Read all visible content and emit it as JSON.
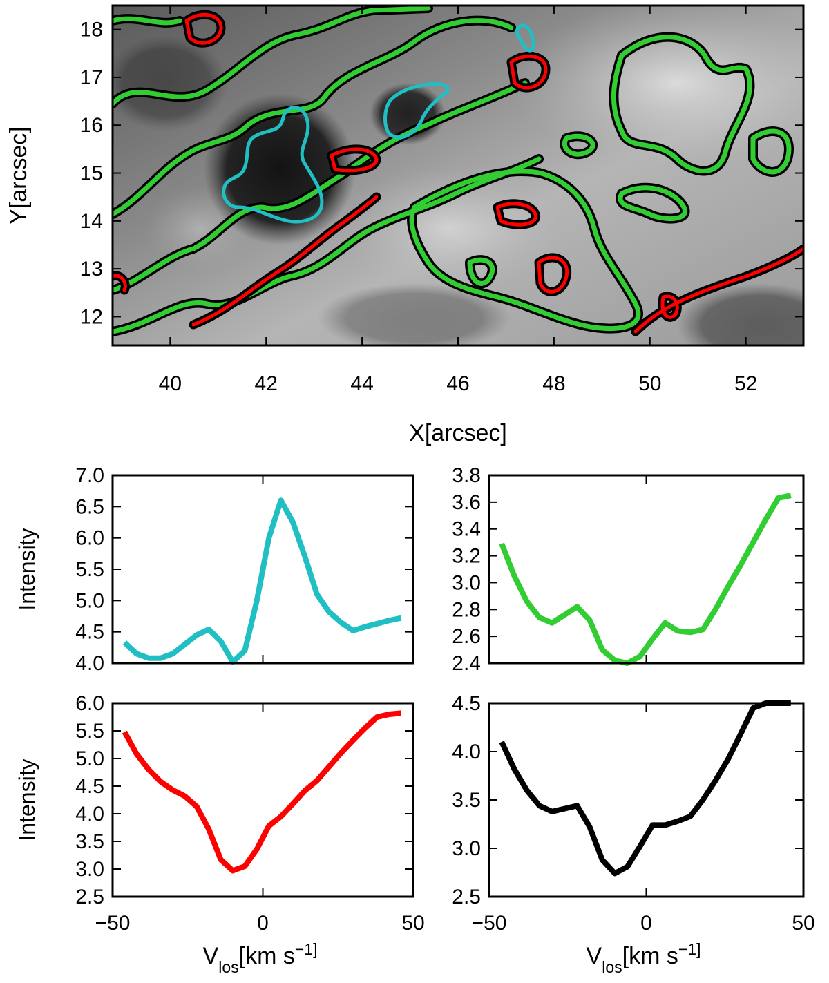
{
  "chart_data": [
    {
      "type": "heatmap",
      "xlabel": "X[arcsec]",
      "ylabel": "Y[arcsec]",
      "xlim": [
        38.8,
        53.2
      ],
      "ylim": [
        11.4,
        18.5
      ],
      "xticks": [
        40,
        42,
        44,
        46,
        48,
        50,
        52
      ],
      "yticks": [
        12,
        13,
        14,
        15,
        16,
        17,
        18
      ],
      "image": "grayscale intensity map with contours",
      "contour_colors": [
        "#1fbfc4",
        "#32cd32",
        "#ff0000",
        "#000000"
      ]
    },
    {
      "type": "line",
      "xlabel": "",
      "ylabel": "Intensity",
      "xlim": [
        -50,
        50
      ],
      "ylim": [
        4.0,
        7.0
      ],
      "yticks": [
        "4.0",
        "4.5",
        "5.0",
        "5.5",
        "6.0",
        "6.5",
        "7.0"
      ],
      "series": [
        {
          "color": "#1fbfc4",
          "x": [
            -46,
            -42,
            -38,
            -34,
            -30,
            -26,
            -22,
            -18,
            -14,
            -10,
            -6,
            -2,
            2,
            6,
            10,
            14,
            18,
            22,
            26,
            30,
            34,
            38,
            42,
            46
          ],
          "y": [
            4.33,
            4.15,
            4.08,
            4.08,
            4.15,
            4.3,
            4.45,
            4.54,
            4.35,
            4.02,
            4.2,
            5.0,
            6.0,
            6.6,
            6.25,
            5.7,
            5.1,
            4.82,
            4.65,
            4.52,
            4.58,
            4.63,
            4.68,
            4.72
          ]
        }
      ]
    },
    {
      "type": "line",
      "xlabel": "",
      "ylabel": "",
      "xlim": [
        -50,
        50
      ],
      "ylim": [
        2.4,
        3.8
      ],
      "yticks": [
        "2.4",
        "2.6",
        "2.8",
        "3.0",
        "3.2",
        "3.4",
        "3.6",
        "3.8"
      ],
      "series": [
        {
          "color": "#32cd32",
          "x": [
            -46,
            -42,
            -38,
            -34,
            -30,
            -26,
            -22,
            -18,
            -14,
            -10,
            -6,
            -2,
            2,
            6,
            10,
            14,
            18,
            22,
            26,
            30,
            34,
            38,
            42,
            46
          ],
          "y": [
            3.29,
            3.05,
            2.86,
            2.74,
            2.7,
            2.76,
            2.82,
            2.72,
            2.5,
            2.42,
            2.4,
            2.45,
            2.58,
            2.7,
            2.64,
            2.63,
            2.65,
            2.8,
            2.97,
            3.13,
            3.3,
            3.47,
            3.63,
            3.65
          ]
        }
      ]
    },
    {
      "type": "line",
      "xlabel": "V_los[km s^-1]",
      "ylabel": "Intensity",
      "xlim": [
        -50,
        50
      ],
      "ylim": [
        2.5,
        6.0
      ],
      "xticks": [
        "−50",
        "0",
        "50"
      ],
      "yticks": [
        "2.5",
        "3.0",
        "3.5",
        "4.0",
        "4.5",
        "5.0",
        "5.5",
        "6.0"
      ],
      "series": [
        {
          "color": "#ff0000",
          "x": [
            -46,
            -42,
            -38,
            -34,
            -30,
            -26,
            -22,
            -18,
            -14,
            -10,
            -6,
            -2,
            2,
            6,
            10,
            14,
            18,
            22,
            26,
            30,
            34,
            38,
            42,
            46
          ],
          "y": [
            5.48,
            5.08,
            4.8,
            4.58,
            4.43,
            4.32,
            4.13,
            3.72,
            3.17,
            2.97,
            3.05,
            3.36,
            3.78,
            3.95,
            4.18,
            4.42,
            4.6,
            4.85,
            5.1,
            5.33,
            5.55,
            5.75,
            5.8,
            5.82
          ]
        }
      ]
    },
    {
      "type": "line",
      "xlabel": "V_los[km s^-1]",
      "ylabel": "",
      "xlim": [
        -50,
        50
      ],
      "ylim": [
        2.5,
        4.5
      ],
      "xticks": [
        "−50",
        "0",
        "50"
      ],
      "yticks": [
        "2.5",
        "3.0",
        "3.5",
        "4.0",
        "4.5"
      ],
      "series": [
        {
          "color": "#000000",
          "x": [
            -46,
            -42,
            -38,
            -34,
            -30,
            -26,
            -22,
            -18,
            -14,
            -10,
            -6,
            -2,
            2,
            6,
            10,
            14,
            18,
            22,
            26,
            30,
            34,
            38,
            42,
            46
          ],
          "y": [
            4.1,
            3.82,
            3.6,
            3.44,
            3.38,
            3.41,
            3.44,
            3.22,
            2.88,
            2.74,
            2.81,
            3.02,
            3.24,
            3.24,
            3.28,
            3.33,
            3.5,
            3.7,
            3.92,
            4.18,
            4.45,
            4.5,
            4.52,
            4.53
          ]
        }
      ]
    }
  ]
}
